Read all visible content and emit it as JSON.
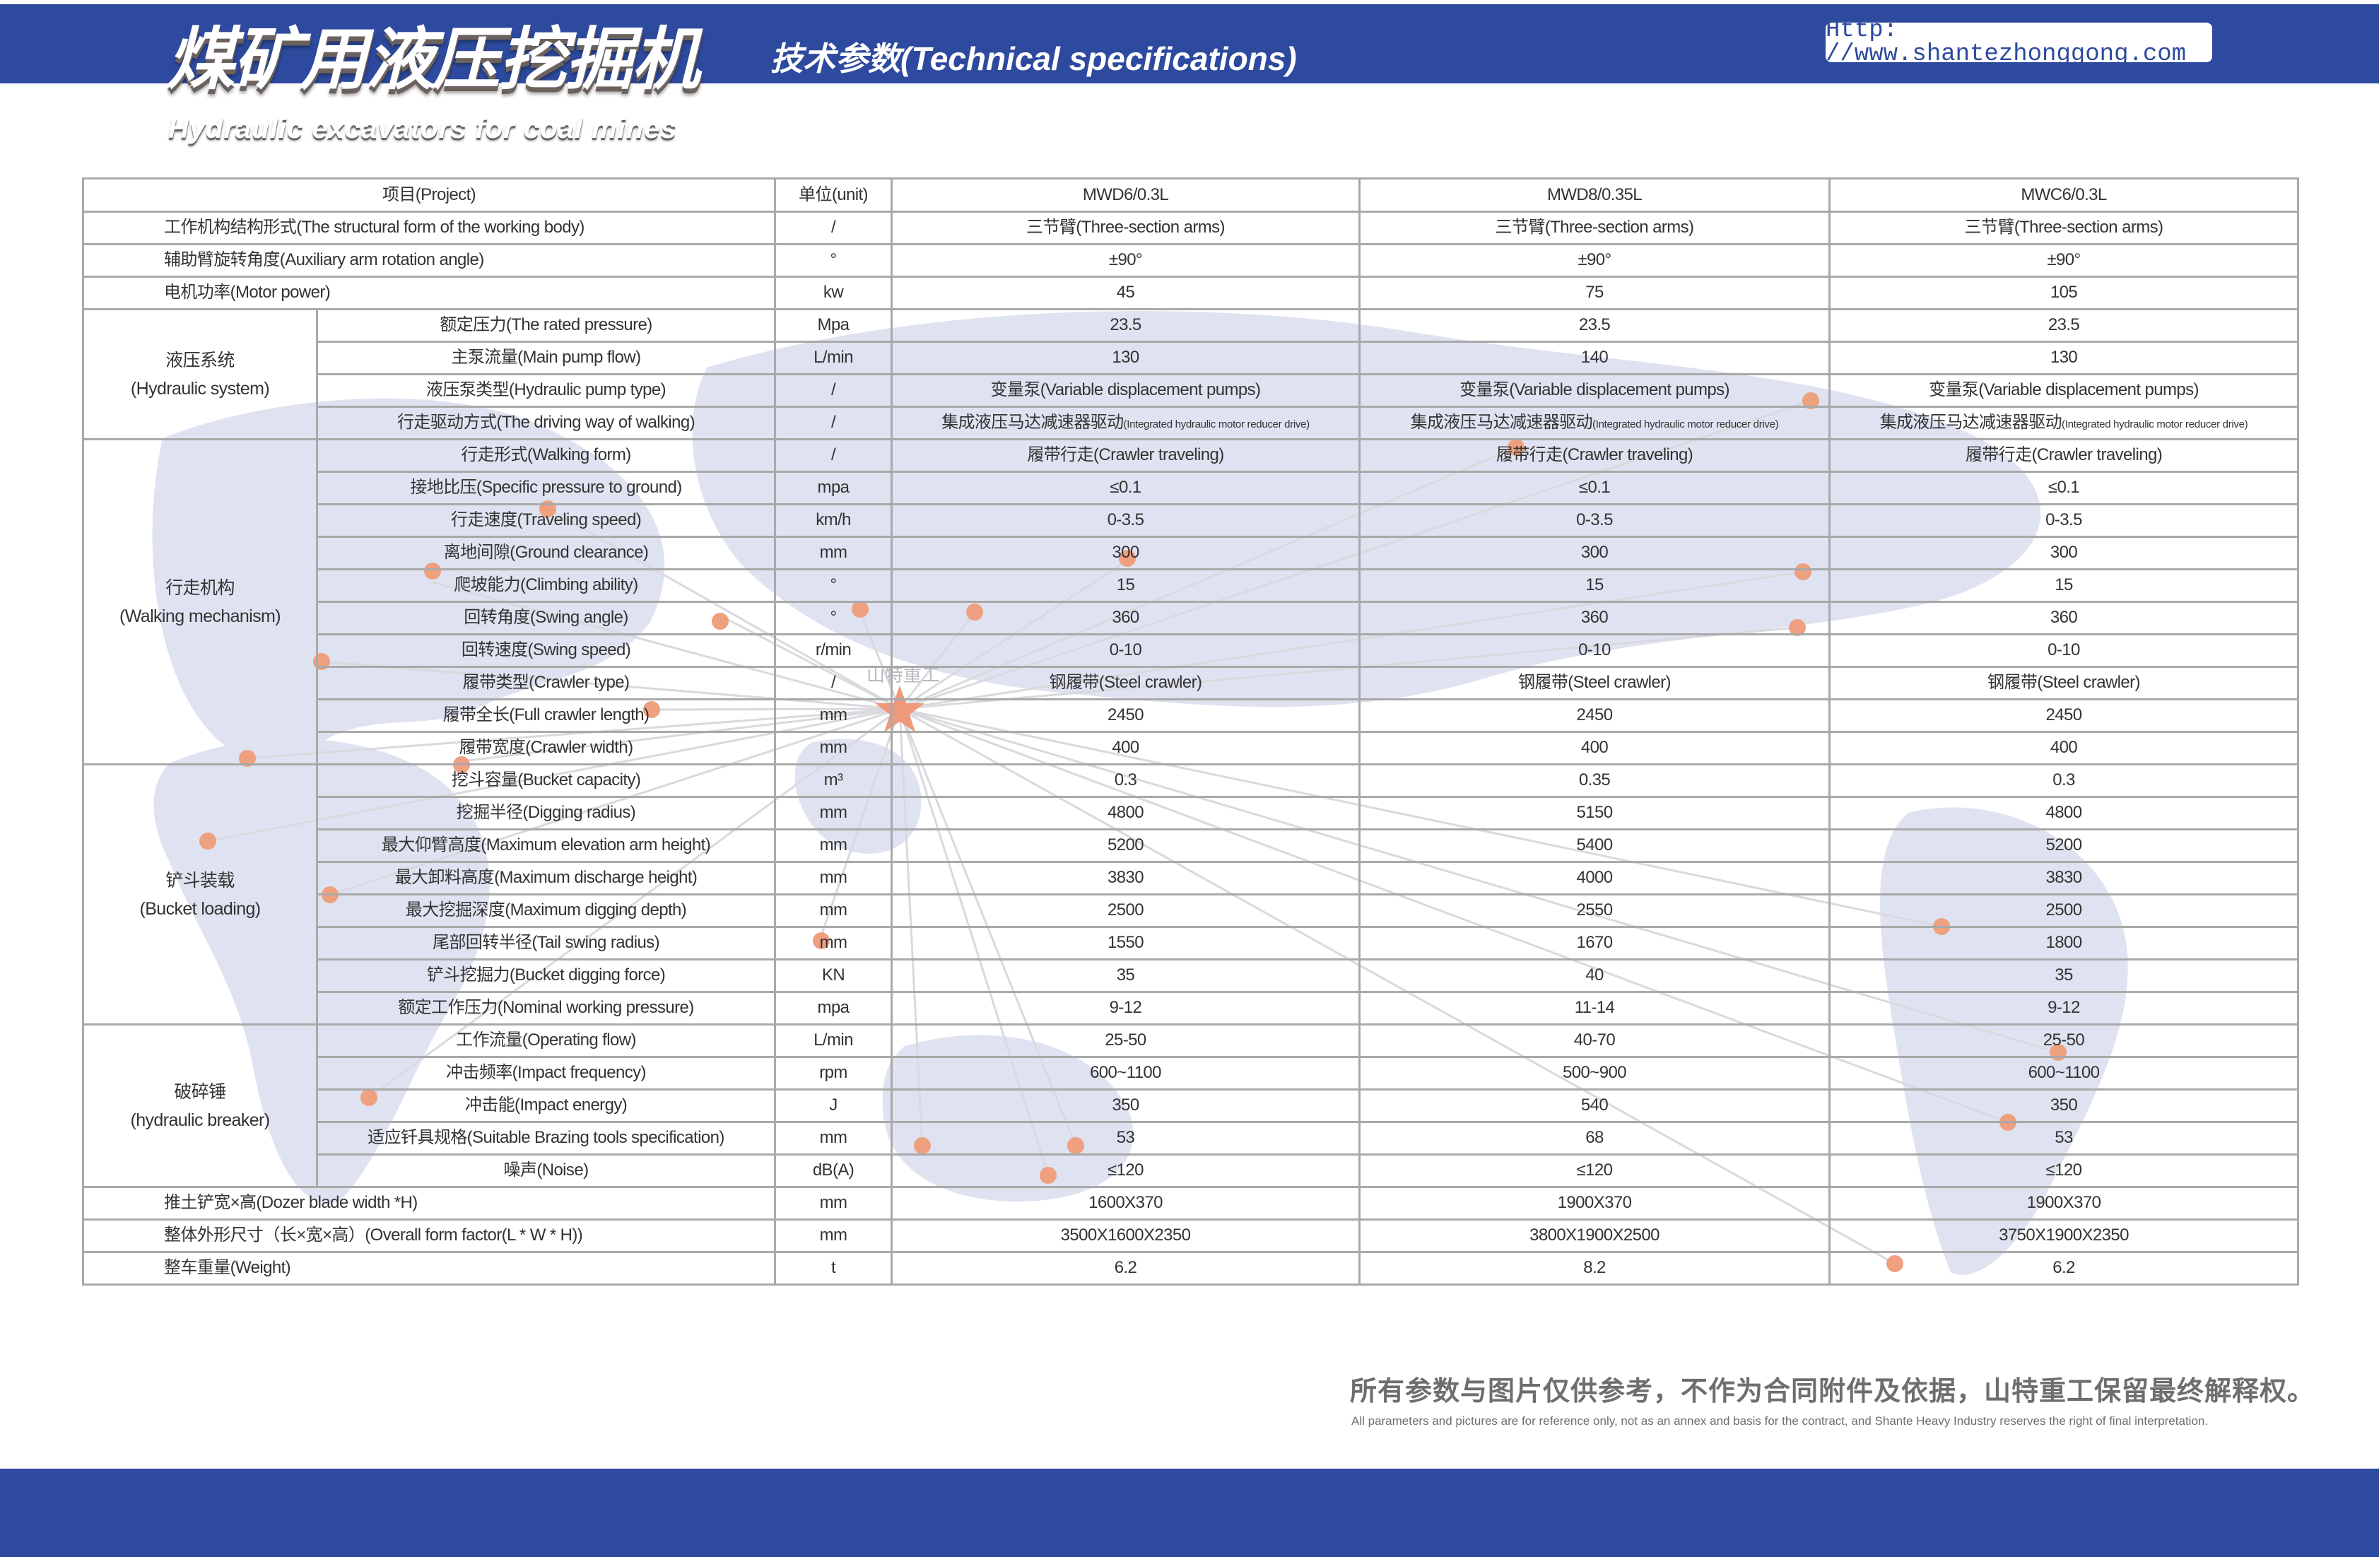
{
  "header": {
    "title_cn": "煤矿用液压挖掘机",
    "title_en": "Hydraulic excavators for coal mines",
    "section_title": "技术参数(Technical specifications)",
    "url": "Http: //www.shantezhonggong.com"
  },
  "watermark": "山特重工",
  "colors": {
    "brand_blue": "#2d4a9e",
    "map_fill": "#dfe2f0",
    "dot": "#eea07f",
    "star": "#ee9a7a"
  },
  "table": {
    "header": {
      "project": "项目(Project)",
      "unit": "单位(unit)",
      "models": [
        "MWD6/0.3L",
        "MWD8/0.35L",
        "MWC6/0.3L"
      ]
    },
    "top_rows": [
      {
        "label": "工作机构结构形式(The structural form of the working body)",
        "unit": "/",
        "values": [
          "三节臂(Three-section arms)",
          "三节臂(Three-section arms)",
          "三节臂(Three-section arms)"
        ]
      },
      {
        "label": "辅助臂旋转角度(Auxiliary arm rotation angle)",
        "unit": "°",
        "values": [
          "±90°",
          "±90°",
          "±90°"
        ]
      },
      {
        "label": "电机功率(Motor power)",
        "unit": "kw",
        "values": [
          "45",
          "75",
          "105"
        ]
      }
    ],
    "groups": [
      {
        "name_cn": "液压系统",
        "name_en": "(Hydraulic system)",
        "rows": [
          {
            "label": "额定压力(The rated pressure)",
            "unit": "Mpa",
            "values": [
              "23.5",
              "23.5",
              "23.5"
            ]
          },
          {
            "label": "主泵流量(Main pump flow)",
            "unit": "L/min",
            "values": [
              "130",
              "140",
              "130"
            ]
          },
          {
            "label": "液压泵类型(Hydraulic pump type)",
            "unit": "/",
            "values": [
              "变量泵(Variable displacement pumps)",
              "变量泵(Variable displacement pumps)",
              "变量泵(Variable displacement pumps)"
            ]
          },
          {
            "label": "行走驱动方式(The driving way of walking)",
            "unit": "/",
            "values": [
              "集成液压马达减速器驱动",
              "集成液压马达减速器驱动",
              "集成液压马达减速器驱动"
            ],
            "notes": [
              "(Integrated hydraulic motor reducer drive)",
              "(Integrated hydraulic motor reducer drive)",
              "(Integrated hydraulic motor reducer drive)"
            ]
          }
        ]
      },
      {
        "name_cn": "行走机构",
        "name_en": "(Walking mechanism)",
        "rows": [
          {
            "label": "行走形式(Walking form)",
            "unit": "/",
            "values": [
              "履带行走(Crawler traveling)",
              "履带行走(Crawler traveling)",
              "履带行走(Crawler traveling)"
            ]
          },
          {
            "label": "接地比压(Specific pressure to ground)",
            "unit": "mpa",
            "values": [
              "≤0.1",
              "≤0.1",
              "≤0.1"
            ]
          },
          {
            "label": "行走速度(Traveling speed)",
            "unit": "km/h",
            "values": [
              "0-3.5",
              "0-3.5",
              "0-3.5"
            ]
          },
          {
            "label": "离地间隙(Ground clearance)",
            "unit": "mm",
            "values": [
              "300",
              "300",
              "300"
            ]
          },
          {
            "label": "爬坡能力(Climbing ability)",
            "unit": "°",
            "values": [
              "15",
              "15",
              "15"
            ]
          },
          {
            "label": "回转角度(Swing angle)",
            "unit": "°",
            "values": [
              "360",
              "360",
              "360"
            ]
          },
          {
            "label": "回转速度(Swing speed)",
            "unit": "r/min",
            "values": [
              "0-10",
              "0-10",
              "0-10"
            ]
          },
          {
            "label": "履带类型(Crawler type)",
            "unit": "/",
            "values": [
              "钢履带(Steel crawler)",
              "钢履带(Steel crawler)",
              "钢履带(Steel crawler)"
            ]
          },
          {
            "label": "履带全长(Full crawler length)",
            "unit": "mm",
            "values": [
              "2450",
              "2450",
              "2450"
            ]
          },
          {
            "label": "履带宽度(Crawler width)",
            "unit": "mm",
            "values": [
              "400",
              "400",
              "400"
            ]
          }
        ]
      },
      {
        "name_cn": "铲斗装载",
        "name_en": "(Bucket loading)",
        "rows": [
          {
            "label": "挖斗容量(Bucket capacity)",
            "unit": "m³",
            "values": [
              "0.3",
              "0.35",
              "0.3"
            ]
          },
          {
            "label": "挖掘半径(Digging radius)",
            "unit": "mm",
            "values": [
              "4800",
              "5150",
              "4800"
            ]
          },
          {
            "label": "最大仰臂高度(Maximum elevation arm height)",
            "unit": "mm",
            "values": [
              "5200",
              "5400",
              "5200"
            ]
          },
          {
            "label": "最大卸料高度(Maximum discharge height)",
            "unit": "mm",
            "values": [
              "3830",
              "4000",
              "3830"
            ]
          },
          {
            "label": "最大挖掘深度(Maximum digging depth)",
            "unit": "mm",
            "values": [
              "2500",
              "2550",
              "2500"
            ]
          },
          {
            "label": "尾部回转半径(Tail swing radius)",
            "unit": "mm",
            "values": [
              "1550",
              "1670",
              "1800"
            ]
          },
          {
            "label": "铲斗挖掘力(Bucket digging force)",
            "unit": "KN",
            "values": [
              "35",
              "40",
              "35"
            ]
          },
          {
            "label": "额定工作压力(Nominal working pressure)",
            "unit": "mpa",
            "values": [
              "9-12",
              "11-14",
              "9-12"
            ]
          }
        ]
      },
      {
        "name_cn": "破碎锤",
        "name_en": "(hydraulic breaker)",
        "rows": [
          {
            "label": "工作流量(Operating flow)",
            "unit": "L/min",
            "values": [
              "25-50",
              "40-70",
              "25-50"
            ]
          },
          {
            "label": "冲击频率(Impact frequency)",
            "unit": "rpm",
            "values": [
              "600~1100",
              "500~900",
              "600~1100"
            ]
          },
          {
            "label": "冲击能(Impact energy)",
            "unit": "J",
            "values": [
              "350",
              "540",
              "350"
            ]
          },
          {
            "label": "适应钎具规格(Suitable Brazing tools specification)",
            "unit": "mm",
            "values": [
              "53",
              "68",
              "53"
            ]
          },
          {
            "label": "噪声(Noise)",
            "unit": "dB(A)",
            "values": [
              "≤120",
              "≤120",
              "≤120"
            ]
          }
        ]
      }
    ],
    "bottom_rows": [
      {
        "label": "推土铲宽×高(Dozer blade width *H)",
        "unit": "mm",
        "values": [
          "1600X370",
          "1900X370",
          "1900X370"
        ]
      },
      {
        "label": "整体外形尺寸（长×宽×高）(Overall form factor(L * W * H))",
        "unit": "mm",
        "values": [
          "3500X1600X2350",
          "3800X1900X2500",
          "3750X1900X2350"
        ]
      },
      {
        "label": "整车重量(Weight)",
        "unit": "t",
        "values": [
          "6.2",
          "8.2",
          "6.2"
        ]
      }
    ]
  },
  "footer": {
    "disclaimer_cn": "所有参数与图片仅供参考，不作为合同附件及依据，山特重工保留最终解释权。",
    "disclaimer_en": "All parameters and pictures are for reference only, not as an annex and basis for the contract, and Shante Heavy Industry reserves the right of final interpretation."
  }
}
